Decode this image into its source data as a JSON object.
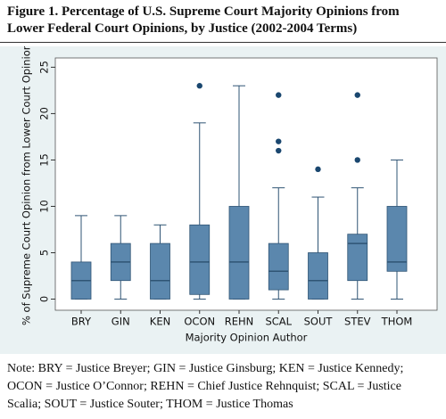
{
  "title": "Figure 1. Percentage of U.S. Supreme Court Majority Opinions from Lower Federal Court Opinions, by Justice (2002-2004 Terms)",
  "chart_data": {
    "type": "box",
    "x_label": "Majority Opinion Author",
    "y_label": "% of Supreme Court Opinion from Lower Court Opinion",
    "categories": [
      "BRY",
      "GIN",
      "KEN",
      "OCON",
      "REHN",
      "SCAL",
      "SOUT",
      "STEV",
      "THOM"
    ],
    "boxes": [
      {
        "min": 0,
        "q1": 0,
        "median": 2,
        "q3": 4,
        "max": 9,
        "outliers": []
      },
      {
        "min": 0,
        "q1": 2,
        "median": 4,
        "q3": 6,
        "max": 9,
        "outliers": []
      },
      {
        "min": 0,
        "q1": 0,
        "median": 2,
        "q3": 6,
        "max": 8,
        "outliers": []
      },
      {
        "min": 0,
        "q1": 0.5,
        "median": 4,
        "q3": 8,
        "max": 19,
        "outliers": [
          23
        ]
      },
      {
        "min": 0,
        "q1": 0,
        "median": 4,
        "q3": 10,
        "max": 23,
        "outliers": []
      },
      {
        "min": 0,
        "q1": 1,
        "median": 3,
        "q3": 6,
        "max": 12,
        "outliers": [
          16,
          17,
          22
        ]
      },
      {
        "min": 0,
        "q1": 0,
        "median": 2,
        "q3": 5,
        "max": 11,
        "outliers": [
          14
        ]
      },
      {
        "min": 0,
        "q1": 2,
        "median": 6,
        "q3": 7,
        "max": 12,
        "outliers": [
          15,
          22
        ]
      },
      {
        "min": 0,
        "q1": 3,
        "median": 4,
        "q3": 10,
        "max": 15,
        "outliers": []
      }
    ],
    "color": "#5b87ad",
    "ylim": [
      -1.2,
      26
    ],
    "yticks": [
      0,
      5,
      10,
      15,
      20,
      25
    ],
    "grid": false
  },
  "note": "Note: BRY = Justice Breyer; GIN = Justice Ginsburg; KEN = Justice Kennedy; OCON = Justice O’Connor; REHN = Chief Justice Rehnquist; SCAL = Justice Scalia; SOUT = Justice Souter; THOM = Justice Thomas"
}
